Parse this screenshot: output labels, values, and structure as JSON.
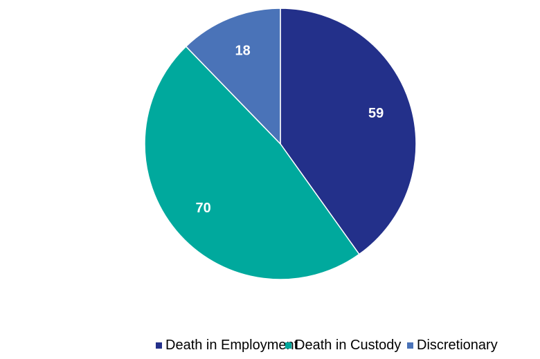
{
  "chart_data": {
    "type": "pie",
    "title": "",
    "categories": [
      "Death in Employment",
      "Death in Custody",
      "Discretionary"
    ],
    "values": [
      59,
      70,
      18
    ],
    "colors": [
      "#23308A",
      "#00A99D",
      "#4A73B8"
    ],
    "data_labels": [
      "59",
      "70",
      "18"
    ],
    "start_angle_deg": 0,
    "direction": "clockwise",
    "legend_position": "bottom",
    "label_color": "#ffffff",
    "slice_border_color": "#ffffff"
  },
  "legend": {
    "items": [
      {
        "label": "Death in Employment",
        "color": "#23308A"
      },
      {
        "label": "Death in Custody",
        "color": "#00A99D"
      },
      {
        "label": "Discretionary",
        "color": "#4A73B8"
      }
    ]
  }
}
